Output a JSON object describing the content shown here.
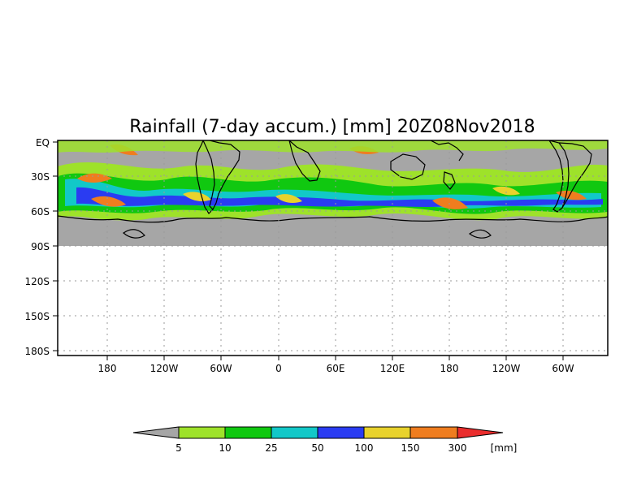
{
  "map": {
    "title": "Rainfall (7-day accum.) [mm] 20Z08Nov2018",
    "y_tick_labels": [
      "EQ",
      "30S",
      "60S",
      "90S",
      "120S",
      "150S",
      "180S"
    ],
    "x_tick_labels": [
      "180",
      "120W",
      "60W",
      "0",
      "60E",
      "120E",
      "180",
      "120W",
      "60W"
    ],
    "colorbar": {
      "labels": [
        "5",
        "10",
        "25",
        "50",
        "100",
        "150",
        "300"
      ],
      "unit": "[mm]",
      "colors": [
        "#a6a6a6",
        "#9ee22a",
        "#10c810",
        "#12c8c8",
        "#2a3cf2",
        "#e8d22c",
        "#ef7d1f",
        "#ea2d2d"
      ]
    },
    "colors": {
      "background": "#ffffff",
      "land_mask": "#a6a6a6",
      "coastline": "#000000",
      "grid": "#9a9a9a"
    }
  }
}
